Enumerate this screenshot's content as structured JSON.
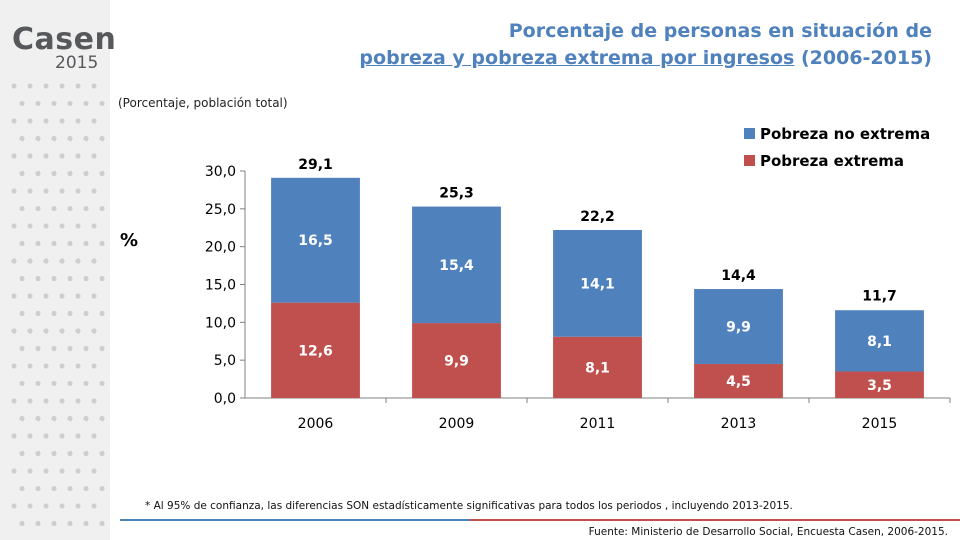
{
  "logo": {
    "word": "Casen",
    "year": "2015"
  },
  "title": {
    "line1": "Porcentaje de personas en situación de",
    "line2_underlined": "pobreza y pobreza extrema por ingresos",
    "line2_rest": " (2006-2015)"
  },
  "subtitle": "(Porcentaje, población total)",
  "footnote": "* Al 95% de confianza, las diferencias SON estadísticamente significativas para todos los periodos , incluyendo 2013-2015.",
  "source": "Fuente: Ministerio de Desarrollo Social, Encuesta Casen, 2006-2015.",
  "chart_data": {
    "type": "bar",
    "stacked": true,
    "categories": [
      "2006",
      "2009",
      "2011",
      "2013",
      "2015"
    ],
    "series": [
      {
        "name": "Pobreza extrema",
        "values": [
          12.6,
          9.9,
          8.1,
          4.5,
          3.5
        ],
        "labels": [
          "12,6",
          "9,9",
          "8,1",
          "4,5",
          "3,5"
        ],
        "color": "#c0504d"
      },
      {
        "name": "Pobreza no extrema",
        "values": [
          16.5,
          15.4,
          14.1,
          9.9,
          8.1
        ],
        "labels": [
          "16,5",
          "15,4",
          "14,1",
          "9,9",
          "8,1"
        ],
        "color": "#4f81bd"
      }
    ],
    "totals": [
      29.1,
      25.3,
      22.2,
      14.4,
      11.7
    ],
    "total_labels": [
      "29,1",
      "25,3",
      "22,2",
      "14,4",
      "11,7"
    ],
    "ylabel": "%",
    "ylim": [
      0,
      30
    ],
    "yticks": [
      "0,0",
      "5,0",
      "10,0",
      "15,0",
      "20,0",
      "25,0",
      "30,0"
    ],
    "legend": {
      "position": "top-right",
      "order": [
        "Pobreza no extrema",
        "Pobreza extrema"
      ]
    },
    "grid": false
  }
}
